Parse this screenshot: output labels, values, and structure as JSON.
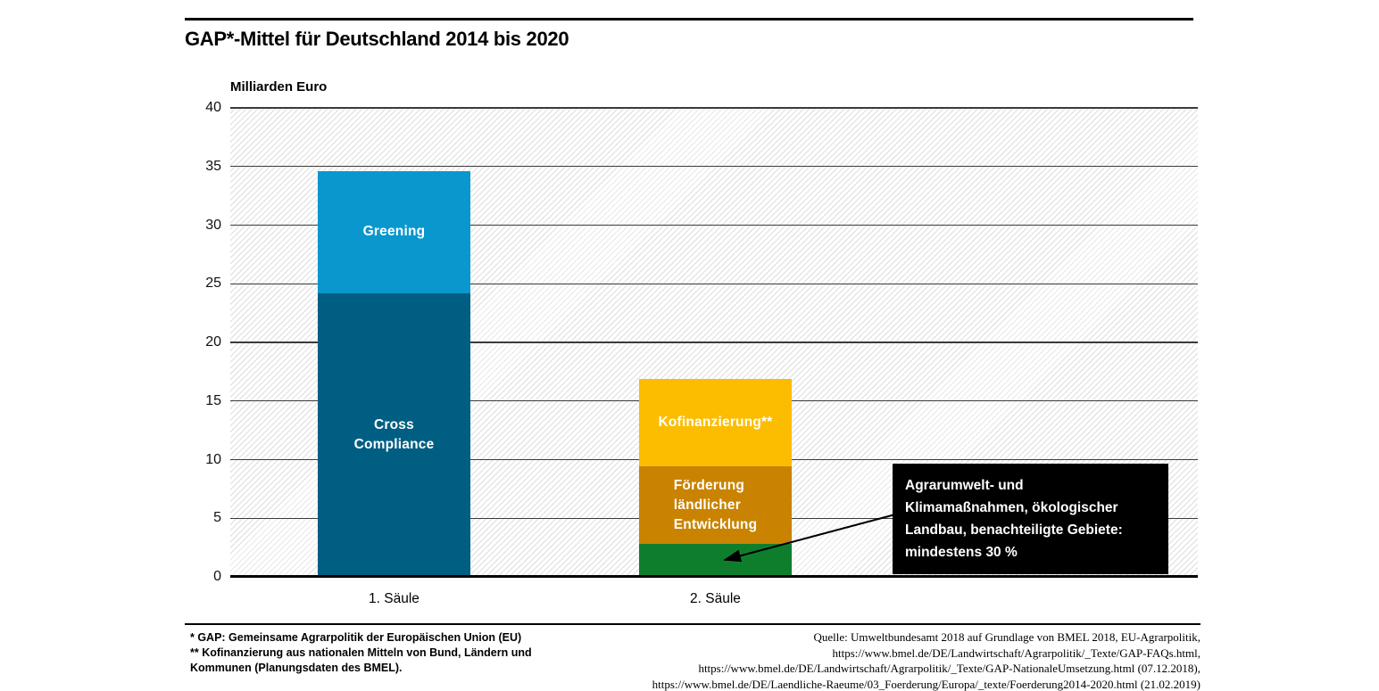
{
  "header": {
    "title": "GAP*-Mittel für Deutschland 2014 bis 2020"
  },
  "chart_data": {
    "type": "bar",
    "subtype": "stacked-vertical",
    "title": "GAP*-Mittel für Deutschland 2014 bis 2020",
    "ylabel": "Milliarden Euro",
    "ylim": [
      0,
      40
    ],
    "yticks": [
      0,
      5,
      10,
      15,
      20,
      25,
      30,
      35,
      40
    ],
    "grid": "horizontal, dark gray lines on hatched background",
    "categories": [
      "1. Säule",
      "2. Säule"
    ],
    "bars": [
      {
        "category": "1. Säule",
        "total": 34.6,
        "segments": [
          {
            "label": "Cross\nCompliance",
            "value": 24.2,
            "color": "#005e83",
            "align": "center"
          },
          {
            "label": "Greening",
            "value": 10.4,
            "color": "#0a97ce",
            "align": "center"
          }
        ]
      },
      {
        "category": "2. Säule",
        "total": 16.9,
        "segments": [
          {
            "label": "",
            "value": 2.8,
            "color": "#0f7e2c",
            "align": "center"
          },
          {
            "label": "Förderung\nländlicher\nEntwicklung",
            "value": 6.6,
            "color": "#c98300",
            "align": "left"
          },
          {
            "label": "Kofinanzierung**",
            "value": 7.5,
            "color": "#fcbd00",
            "align": "center"
          }
        ]
      }
    ],
    "annotation": {
      "text": "Agrarumwelt- und\nKlimamaßnahmen, ökologischer\nLandbau, benachteiligte Gebiete:\nmindestens 30 %",
      "points_to": "lowest (green) segment of 2. Säule",
      "box_color": "#000000",
      "text_color": "#ffffff"
    }
  },
  "footnotes": {
    "text": "* GAP: Gemeinsame Agrarpolitik der Europäischen Union (EU)\n** Kofinanzierung aus nationalen Mitteln von Bund, Ländern und\nKommunen (Planungsdaten des BMEL)."
  },
  "source": {
    "text": "Quelle: Umweltbundesamt 2018 auf Grundlage von BMEL 2018, EU-Agrarpolitik,\nhttps://www.bmel.de/DE/Landwirtschaft/Agrarpolitik/_Texte/GAP-FAQs.html,\nhttps://www.bmel.de/DE/Landwirtschaft/Agrarpolitik/_Texte/GAP-NationaleUmsetzung.html (07.12.2018),\nhttps://www.bmel.de/DE/Laendliche-Raeume/03_Foerderung/Europa/_texte/Foerderung2014-2020.html (21.02.2019)"
  }
}
